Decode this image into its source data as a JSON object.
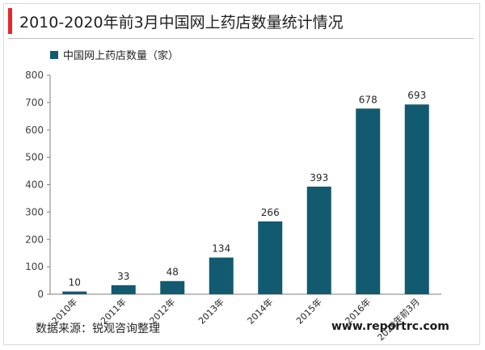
{
  "title": "2010-2020年前3月中国网上药店数量统计情况",
  "source": "数据来源：锐观咨询整理",
  "watermark": "www.reportrc.com",
  "colors": {
    "bar": "#125a70",
    "accent": "#e8262b"
  },
  "chart_data": {
    "type": "bar",
    "categories": [
      "2010年",
      "2011年",
      "2012年",
      "2013年",
      "2014年",
      "2015年",
      "2016年",
      "2020年前3月"
    ],
    "series": [
      {
        "name": "中国网上药店数量（家）",
        "values": [
          10,
          33,
          48,
          134,
          266,
          393,
          678,
          693
        ]
      }
    ],
    "ylim": [
      0,
      800
    ],
    "yticks": [
      0,
      100,
      200,
      300,
      400,
      500,
      600,
      700,
      800
    ],
    "legend": "top-left",
    "grid": false
  }
}
